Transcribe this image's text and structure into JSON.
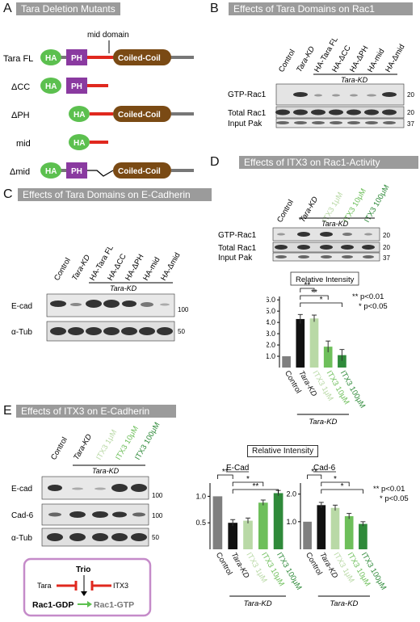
{
  "panels": {
    "A": {
      "letter": "A",
      "title": "Tara Deletion Mutants",
      "mid_domain_label": "mid domain",
      "constructs": [
        "Tara FL",
        "ΔCC",
        "ΔPH",
        "mid",
        "Δmid"
      ],
      "domains": {
        "ha": "HA",
        "ph": "PH",
        "cc": "Coiled-Coil"
      }
    },
    "B": {
      "letter": "B",
      "title": "Effects of Tara Domains on Rac1",
      "lanes": [
        "Control",
        "Tara-KD",
        "HA-Tara FL",
        "HA-ΔCC",
        "HA-ΔPH",
        "HA-mid",
        "HA-Δmid"
      ],
      "kd_label": "Tara-KD",
      "rows": [
        "GTP-Rac1",
        "Total Rac1",
        "Input Pak"
      ],
      "mw": [
        "20",
        "20",
        "37"
      ]
    },
    "C": {
      "letter": "C",
      "title": "Effects of Tara Domains on E-Cadherin",
      "lanes": [
        "Control",
        "Tara-KD",
        "HA-Tara FL",
        "HA-ΔCC",
        "HA-ΔPH",
        "HA-mid",
        "HA-Δmid"
      ],
      "kd_label": "Tara-KD",
      "rows": [
        "E-cad",
        "α-Tub"
      ],
      "mw": [
        "100",
        "50"
      ]
    },
    "D": {
      "letter": "D",
      "title": "Effects of ITX3 on Rac1-Activity",
      "lanes": [
        "Control",
        "Tara-KD",
        "ITX3 1μM",
        "ITX3 10μM",
        "ITX3 100μM"
      ],
      "kd_label": "Tara-KD",
      "rows": [
        "GTP-Rac1",
        "Total Rac1",
        "Input Pak"
      ],
      "mw": [
        "20",
        "20",
        "37"
      ],
      "legend": {
        "l1": "** p<0.01",
        "l2": "* p<0.05"
      }
    },
    "E": {
      "letter": "E",
      "title": "Effects of ITX3 on E-Cadherin",
      "lanes": [
        "Control",
        "Tara-KD",
        "ITX3 1μM",
        "ITX3 10μM",
        "ITX3 100μM"
      ],
      "kd_label": "Tara-KD",
      "rows": [
        "E-cad",
        "Cad-6",
        "α-Tub"
      ],
      "mw": [
        "100",
        "100",
        "50"
      ],
      "relative_intensity": "Relative Intensity",
      "legend": {
        "l1": "** p<0.01",
        "l2": "* p<0.05"
      },
      "schematic": {
        "trio": "Trio",
        "tara": "Tara",
        "itx3": "ITX3",
        "gdp": "Rac1-GDP",
        "gtp": "Rac1-GTP"
      }
    }
  },
  "colors": {
    "control": "#7f7f7f",
    "tara_kd": "#111111",
    "itx3_1": "#b9d9a6",
    "itx3_10": "#6ebf5b",
    "itx3_100": "#2f8a3a",
    "ha": "#5cc04f",
    "ph": "#8a3aa0",
    "linker": "#e0281e",
    "coiled": "#7a4a14"
  },
  "chart_data": [
    {
      "type": "bar",
      "panel": "D",
      "title": "Relative Intensity",
      "categories": [
        "Control",
        "Tara-KD",
        "ITX3 1μM",
        "ITX3 10μM",
        "ITX3 100μM"
      ],
      "values": [
        1.0,
        4.3,
        4.35,
        1.85,
        1.1
      ],
      "errors": [
        0,
        0.4,
        0.3,
        0.5,
        0.5
      ],
      "yticks": [
        1.0,
        2.0,
        3.0,
        4.0,
        5.0,
        6.0
      ],
      "ylim": [
        0,
        6.3
      ],
      "group_label": "Tara-KD",
      "significance": [
        {
          "from": 1,
          "to": 2,
          "label": "**"
        },
        {
          "from": 1,
          "to": 3,
          "label": "**"
        },
        {
          "from": 1,
          "to": 4,
          "label": "*"
        }
      ]
    },
    {
      "type": "bar",
      "panel": "E",
      "title": "E-Cad",
      "categories": [
        "Control",
        "Tara-KD",
        "ITX3 1μM",
        "ITX3 10μM",
        "ITX3 100μM"
      ],
      "values": [
        1.0,
        0.5,
        0.54,
        0.88,
        1.06
      ],
      "errors": [
        0,
        0.06,
        0.05,
        0.05,
        0.05
      ],
      "yticks": [
        0.5,
        1.0
      ],
      "ylim": [
        0,
        1.25
      ],
      "group_label": "Tara-KD",
      "significance": [
        {
          "from": 0,
          "to": 1,
          "label": "**"
        },
        {
          "from": 1,
          "to": 3,
          "label": "*"
        },
        {
          "from": 1,
          "to": 4,
          "label": "**"
        }
      ]
    },
    {
      "type": "bar",
      "panel": "E",
      "title": "Cad-6",
      "categories": [
        "Control",
        "Tara-KD",
        "ITX3 1μM",
        "ITX3 10μM",
        "ITX3 100μM"
      ],
      "values": [
        1.0,
        1.6,
        1.5,
        1.2,
        0.92
      ],
      "errors": [
        0,
        0.1,
        0.1,
        0.1,
        0.08
      ],
      "yticks": [
        1.0,
        2.0
      ],
      "ylim": [
        0,
        2.4
      ],
      "group_label": "Tara-KD",
      "significance": [
        {
          "from": 0,
          "to": 1,
          "label": "**"
        },
        {
          "from": 1,
          "to": 3,
          "label": "*"
        },
        {
          "from": 1,
          "to": 4,
          "label": "*"
        }
      ]
    }
  ]
}
